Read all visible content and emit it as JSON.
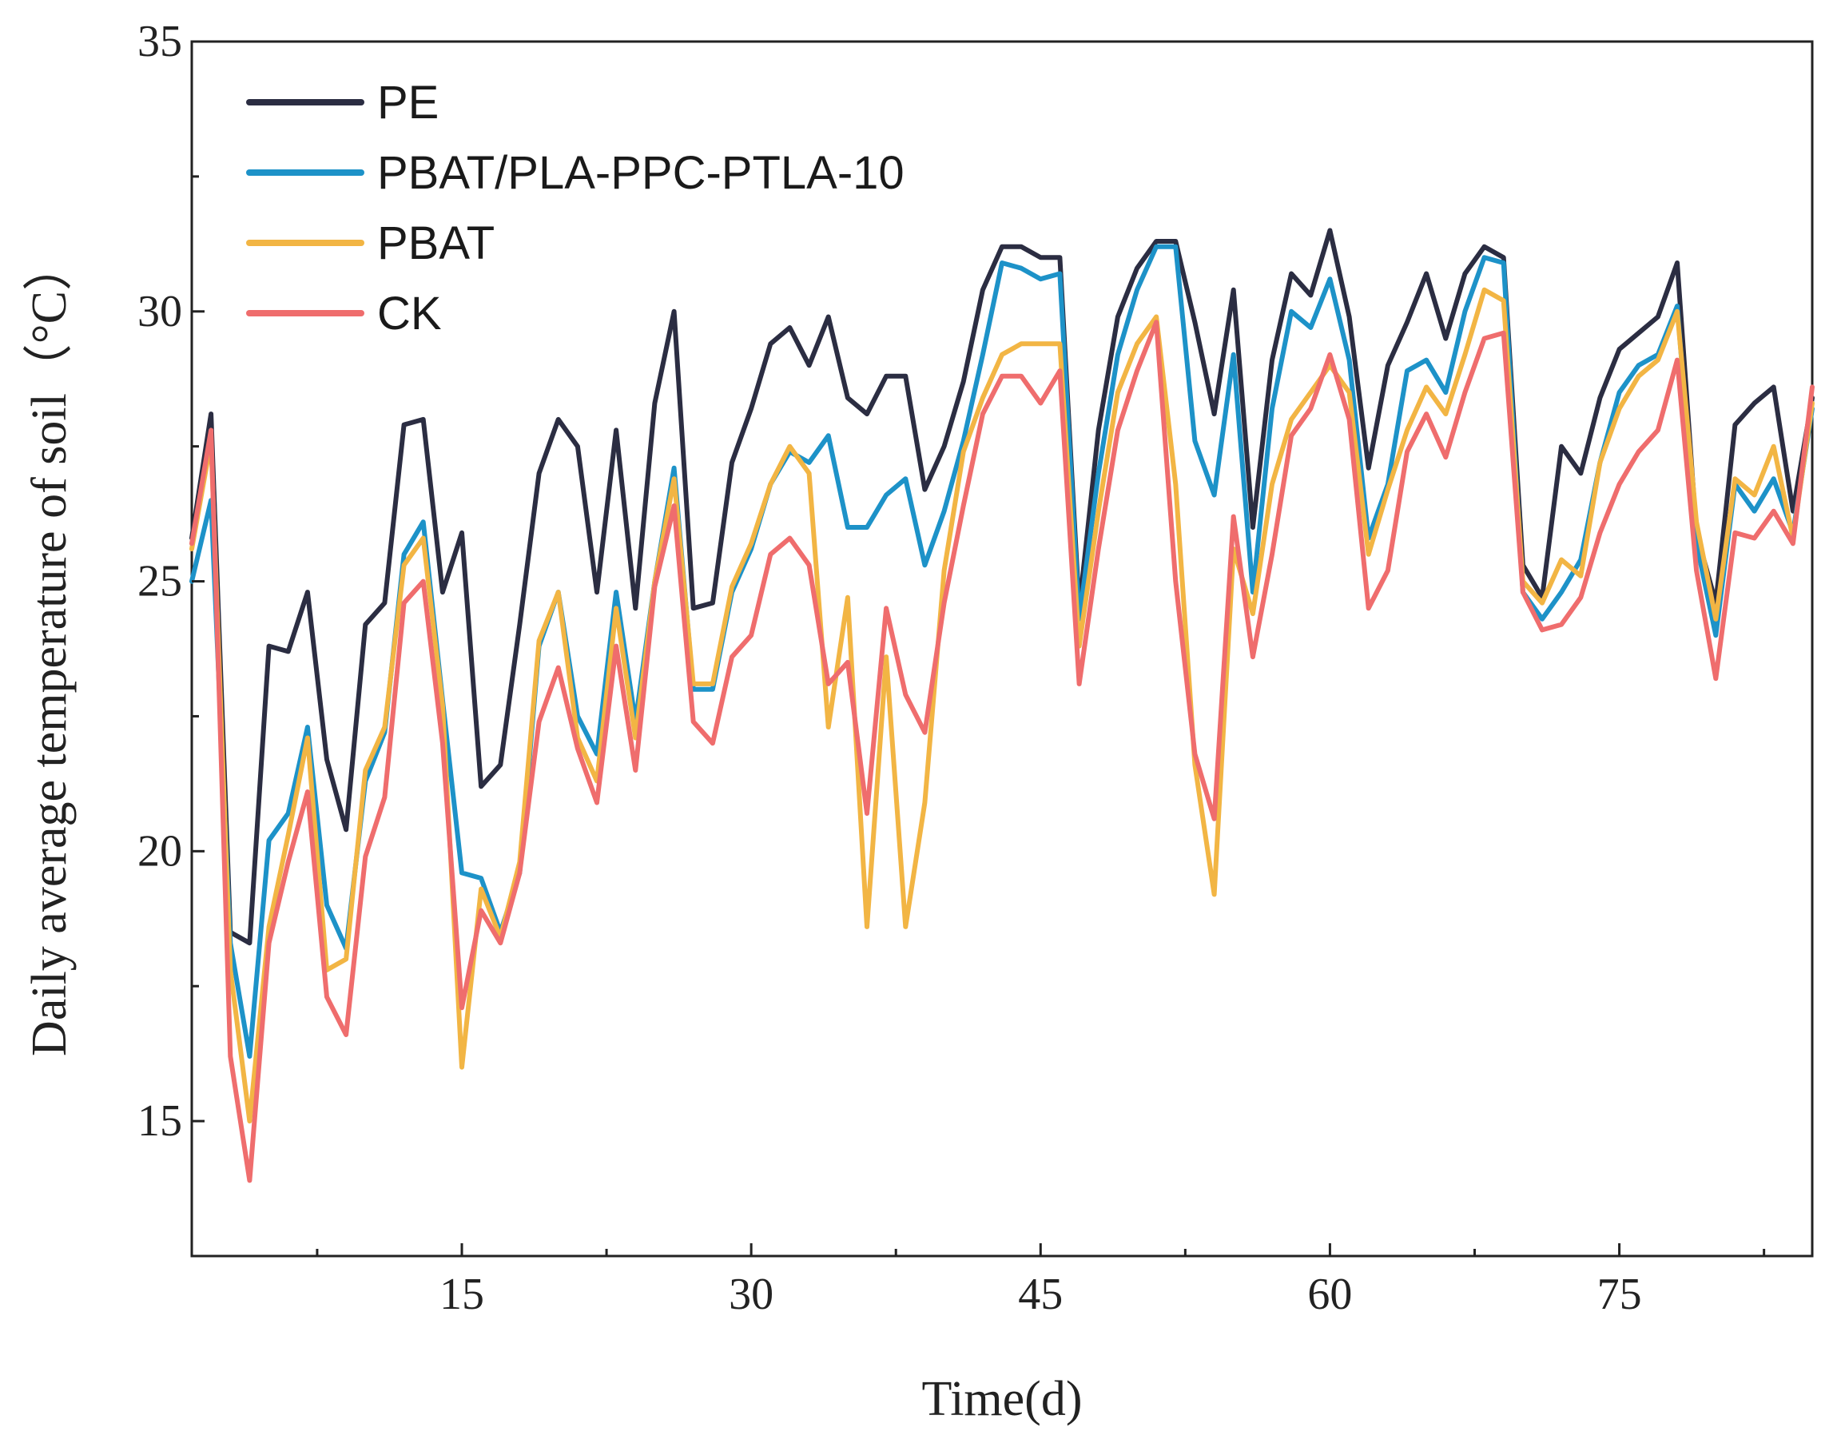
{
  "chart_data": {
    "type": "line",
    "title": "",
    "xlabel": "Time(d)",
    "ylabel": "Daily average temperature of soil（°C）",
    "xlim": [
      1,
      85
    ],
    "ylim": [
      12.5,
      35
    ],
    "x_ticks": [
      15,
      30,
      45,
      60,
      75
    ],
    "x_tick_labels": [
      "15",
      "30",
      "45",
      "60",
      "75"
    ],
    "y_ticks": [
      15,
      20,
      25,
      30,
      35
    ],
    "y_tick_labels": [
      "15",
      "20",
      "25",
      "30",
      "35"
    ],
    "legend_position": "top-left",
    "grid": false,
    "x": [
      1,
      2,
      3,
      4,
      5,
      6,
      7,
      8,
      9,
      10,
      11,
      12,
      13,
      14,
      15,
      16,
      17,
      18,
      19,
      20,
      21,
      22,
      23,
      24,
      25,
      26,
      27,
      28,
      29,
      30,
      31,
      32,
      33,
      34,
      35,
      36,
      37,
      38,
      39,
      40,
      41,
      42,
      43,
      44,
      45,
      46,
      47,
      48,
      49,
      50,
      51,
      52,
      53,
      54,
      55,
      56,
      57,
      58,
      59,
      60,
      61,
      62,
      63,
      64,
      65,
      66,
      67,
      68,
      69,
      70,
      71,
      72,
      73,
      74,
      75,
      76,
      77,
      78,
      79,
      80,
      81,
      82,
      83,
      84,
      85
    ],
    "series": [
      {
        "name": "PE",
        "color": "#2b2d42",
        "values": [
          25.8,
          28.1,
          18.5,
          18.3,
          23.8,
          23.7,
          24.8,
          21.7,
          20.4,
          24.2,
          24.6,
          27.9,
          28.0,
          24.8,
          25.9,
          21.2,
          21.6,
          24.2,
          27.0,
          28.0,
          27.5,
          24.8,
          27.8,
          24.5,
          28.3,
          30.0,
          24.5,
          24.6,
          27.2,
          28.2,
          29.4,
          29.7,
          29.0,
          29.9,
          28.4,
          28.1,
          28.8,
          28.8,
          26.7,
          27.5,
          28.7,
          30.4,
          31.2,
          31.2,
          31.0,
          31.0,
          24.5,
          27.8,
          29.9,
          30.8,
          31.3,
          31.3,
          29.8,
          28.1,
          30.4,
          26.0,
          29.1,
          30.7,
          30.3,
          31.5,
          29.9,
          27.1,
          29.0,
          29.8,
          30.7,
          29.5,
          30.7,
          31.2,
          31.0,
          25.3,
          24.7,
          27.5,
          27.0,
          28.4,
          29.3,
          29.6,
          29.9,
          30.9,
          25.9,
          24.6,
          27.9,
          28.3,
          28.6,
          26.3,
          28.4
        ]
      },
      {
        "name": "PBAT/PLA-PPC-PTLA-10",
        "color": "#1d92c8",
        "values": [
          25.0,
          26.5,
          18.3,
          16.2,
          20.2,
          20.7,
          22.3,
          19.0,
          18.2,
          21.3,
          22.2,
          25.5,
          26.1,
          22.8,
          19.6,
          19.5,
          18.5,
          19.6,
          23.8,
          24.8,
          22.5,
          21.8,
          24.8,
          22.4,
          25.0,
          27.1,
          23.0,
          23.0,
          24.8,
          25.6,
          26.8,
          27.4,
          27.2,
          27.7,
          26.0,
          26.0,
          26.6,
          26.9,
          25.3,
          26.3,
          27.6,
          29.2,
          30.9,
          30.8,
          30.6,
          30.7,
          24.3,
          27.0,
          29.2,
          30.4,
          31.2,
          31.2,
          27.6,
          26.6,
          29.2,
          24.8,
          28.2,
          30.0,
          29.7,
          30.6,
          29.1,
          25.8,
          26.8,
          28.9,
          29.1,
          28.5,
          30.0,
          31.0,
          30.9,
          24.8,
          24.3,
          24.8,
          25.4,
          27.2,
          28.5,
          29.0,
          29.2,
          30.1,
          25.7,
          24.0,
          26.8,
          26.3,
          26.9,
          25.9,
          28.2
        ]
      },
      {
        "name": "PBAT",
        "color": "#f2b544",
        "values": [
          25.6,
          27.6,
          17.8,
          15.0,
          18.6,
          20.3,
          22.1,
          17.8,
          18.0,
          21.5,
          22.3,
          25.3,
          25.8,
          22.7,
          16.0,
          19.3,
          18.4,
          19.8,
          23.9,
          24.8,
          22.1,
          21.3,
          24.5,
          22.1,
          25.0,
          26.9,
          23.1,
          23.1,
          24.9,
          25.7,
          26.8,
          27.5,
          27.0,
          22.3,
          24.7,
          18.6,
          23.6,
          18.6,
          20.9,
          25.2,
          27.4,
          28.4,
          29.2,
          29.4,
          29.4,
          29.4,
          23.8,
          26.3,
          28.5,
          29.4,
          29.9,
          26.8,
          21.6,
          19.2,
          25.6,
          24.4,
          26.8,
          28.0,
          28.5,
          29.0,
          28.5,
          25.5,
          26.7,
          27.8,
          28.6,
          28.1,
          29.2,
          30.4,
          30.2,
          25.0,
          24.6,
          25.4,
          25.1,
          27.2,
          28.2,
          28.8,
          29.1,
          30.0,
          26.1,
          24.3,
          26.9,
          26.6,
          27.5,
          25.8,
          28.3
        ]
      },
      {
        "name": "CK",
        "color": "#ef6d6d",
        "values": [
          25.7,
          27.8,
          16.2,
          13.9,
          18.3,
          19.8,
          21.1,
          17.3,
          16.6,
          19.9,
          21.0,
          24.6,
          25.0,
          22.0,
          17.1,
          18.9,
          18.3,
          19.6,
          22.4,
          23.4,
          21.9,
          20.9,
          23.8,
          21.5,
          24.9,
          26.4,
          22.4,
          22.0,
          23.6,
          24.0,
          25.5,
          25.8,
          25.3,
          23.1,
          23.5,
          20.7,
          24.5,
          22.9,
          22.2,
          24.6,
          26.4,
          28.1,
          28.8,
          28.8,
          28.3,
          28.9,
          23.1,
          25.6,
          27.8,
          28.9,
          29.8,
          25.0,
          21.8,
          20.6,
          26.2,
          23.6,
          25.5,
          27.7,
          28.2,
          29.2,
          28.0,
          24.5,
          25.2,
          27.4,
          28.1,
          27.3,
          28.5,
          29.5,
          29.6,
          24.8,
          24.1,
          24.2,
          24.7,
          25.9,
          26.8,
          27.4,
          27.8,
          29.1,
          25.2,
          23.2,
          25.9,
          25.8,
          26.3,
          25.7,
          28.6
        ]
      }
    ]
  }
}
